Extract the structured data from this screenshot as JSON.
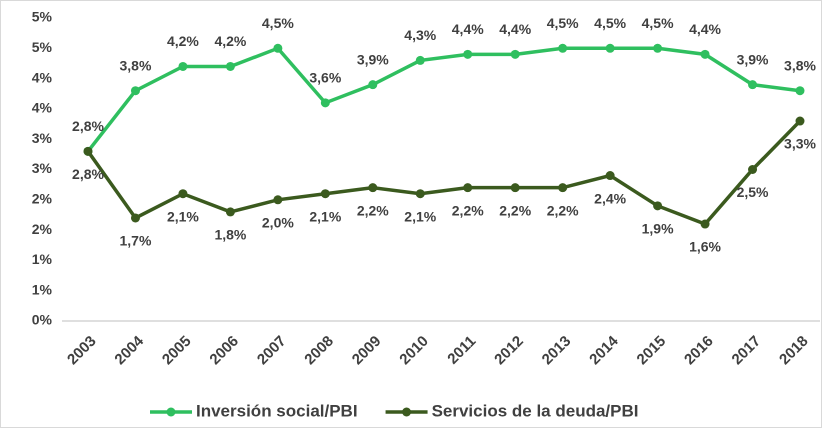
{
  "chart_data": {
    "type": "line",
    "categories": [
      "2003",
      "2004",
      "2005",
      "2006",
      "2007",
      "2008",
      "2009",
      "2010",
      "2011",
      "2012",
      "2013",
      "2014",
      "2015",
      "2016",
      "2017",
      "2018"
    ],
    "series": [
      {
        "name": "Inversión social/PBI",
        "color": "#2fbf5f",
        "values": [
          2.8,
          3.8,
          4.2,
          4.2,
          4.5,
          3.6,
          3.9,
          4.3,
          4.4,
          4.4,
          4.5,
          4.5,
          4.5,
          4.4,
          3.9,
          3.8
        ],
        "value_labels": [
          "2,8%",
          "3,8%",
          "4,2%",
          "4,2%",
          "4,5%",
          "3,6%",
          "3,9%",
          "4,3%",
          "4,4%",
          "4,4%",
          "4,5%",
          "4,5%",
          "4,5%",
          "4,4%",
          "3,9%",
          "3,8%"
        ]
      },
      {
        "name": "Servicios de la deuda/PBI",
        "color": "#3b5a1e",
        "values": [
          2.8,
          1.7,
          2.1,
          1.8,
          2.0,
          2.1,
          2.2,
          2.1,
          2.2,
          2.2,
          2.2,
          2.4,
          1.9,
          1.6,
          2.5,
          3.3
        ],
        "value_labels": [
          "2,8%",
          "1,7%",
          "2,1%",
          "1,8%",
          "2,0%",
          "2,1%",
          "2,2%",
          "2,1%",
          "2,2%",
          "2,2%",
          "2,2%",
          "2,4%",
          "1,9%",
          "1,6%",
          "2,5%",
          "3,3%"
        ]
      }
    ],
    "ylim": [
      0,
      5
    ],
    "yticks": [
      {
        "value": 0,
        "label": "0%"
      },
      {
        "value": 0.5,
        "label": "1%"
      },
      {
        "value": 1,
        "label": "1%"
      },
      {
        "value": 1.5,
        "label": "2%"
      },
      {
        "value": 2,
        "label": "2%"
      },
      {
        "value": 2.5,
        "label": "3%"
      },
      {
        "value": 3,
        "label": "3%"
      },
      {
        "value": 3.5,
        "label": "4%"
      },
      {
        "value": 4,
        "label": "4%"
      },
      {
        "value": 4.5,
        "label": "5%"
      },
      {
        "value": 5,
        "label": "5%"
      }
    ],
    "grid": false,
    "legend": "bottom"
  }
}
